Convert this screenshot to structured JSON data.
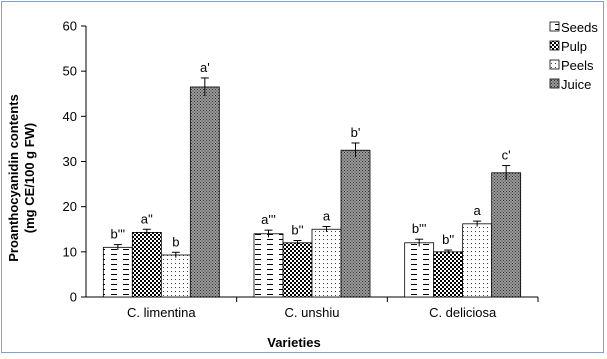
{
  "chart_data": {
    "type": "bar",
    "title": "",
    "xlabel": "Varieties",
    "ylabel": [
      "Proanthocyanidin contents",
      "(mg CE/100 g FW)"
    ],
    "ylim": [
      0,
      60
    ],
    "yticks": [
      0,
      10,
      20,
      30,
      40,
      50,
      60
    ],
    "categories": [
      "C. limentina",
      "C. unshiu",
      "C. deliciosa"
    ],
    "legend_position": "top-right",
    "grid": false,
    "series": [
      {
        "name": "Seeds",
        "pattern": "dashes",
        "values": [
          11,
          14,
          12
        ],
        "errors": [
          0.6,
          0.8,
          0.8
        ],
        "labels": [
          "b'''",
          "a'''",
          "b'''"
        ]
      },
      {
        "name": "Pulp",
        "pattern": "checker",
        "values": [
          14.3,
          12,
          10
        ],
        "errors": [
          0.7,
          0.5,
          0.4
        ],
        "labels": [
          "a''",
          "b''",
          "b''"
        ]
      },
      {
        "name": "Peels",
        "pattern": "dots",
        "values": [
          9.3,
          15,
          16.2
        ],
        "errors": [
          0.6,
          0.6,
          0.6
        ],
        "labels": [
          "b",
          "a",
          "a"
        ]
      },
      {
        "name": "Juice",
        "pattern": "dense",
        "values": [
          46.5,
          32.5,
          27.5
        ],
        "errors": [
          2.0,
          1.6,
          1.6
        ],
        "labels": [
          "a'",
          "b'",
          "c'"
        ]
      }
    ]
  }
}
